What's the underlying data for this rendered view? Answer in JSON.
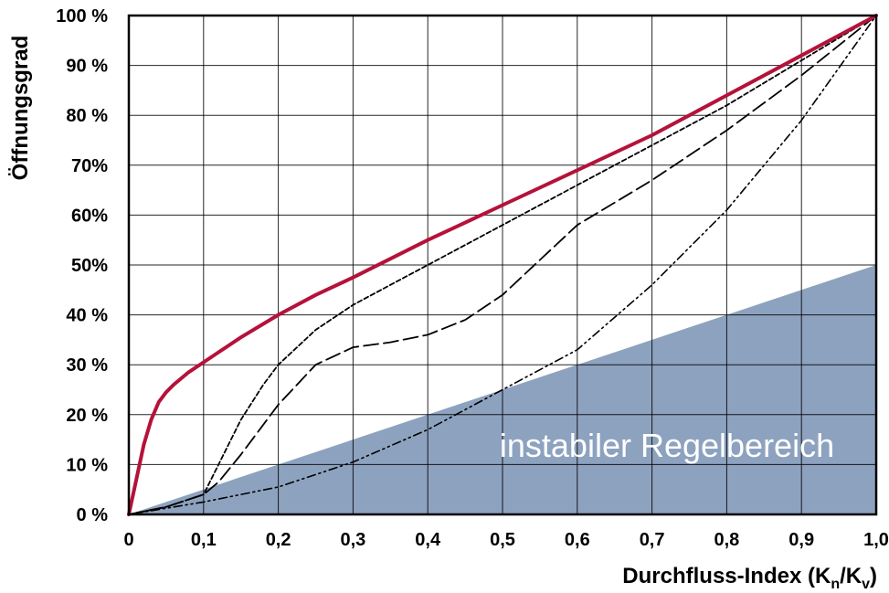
{
  "chart_data": {
    "type": "line",
    "xlabel": {
      "main": "Durchfluss-Index (K",
      "sub1": "n",
      "mid": "/K",
      "sub2": "v",
      "end": ")"
    },
    "ylabel": "Öffnungsgrad",
    "xlim": [
      0,
      1
    ],
    "ylim": [
      0,
      100
    ],
    "x_ticks": [
      {
        "value": 0.0,
        "label": "0"
      },
      {
        "value": 0.1,
        "label": "0,1"
      },
      {
        "value": 0.2,
        "label": "0,2"
      },
      {
        "value": 0.3,
        "label": "0,3"
      },
      {
        "value": 0.4,
        "label": "0,4"
      },
      {
        "value": 0.5,
        "label": "0,5"
      },
      {
        "value": 0.6,
        "label": "0,6"
      },
      {
        "value": 0.7,
        "label": "0,7"
      },
      {
        "value": 0.8,
        "label": "0,8"
      },
      {
        "value": 0.9,
        "label": "0,9"
      },
      {
        "value": 1.0,
        "label": "1,0"
      }
    ],
    "y_ticks": [
      {
        "value": 0,
        "label": "0 %"
      },
      {
        "value": 10,
        "label": "10 %"
      },
      {
        "value": 20,
        "label": "20 %"
      },
      {
        "value": 30,
        "label": "30 %"
      },
      {
        "value": 40,
        "label": "40 %"
      },
      {
        "value": 50,
        "label": "50%"
      },
      {
        "value": 60,
        "label": "60%"
      },
      {
        "value": 70,
        "label": "70%"
      },
      {
        "value": 80,
        "label": "80 %"
      },
      {
        "value": 90,
        "label": "90 %"
      },
      {
        "value": 100,
        "label": "100 %"
      }
    ],
    "grid": true,
    "region": {
      "label": "instabiler Regelbereich",
      "color": "#8da2bf",
      "x": [
        0,
        1,
        1
      ],
      "y": [
        0,
        50,
        0
      ]
    },
    "series": [
      {
        "style": "solid-red",
        "color": "#b5123a",
        "x": [
          0,
          0.01,
          0.02,
          0.03,
          0.04,
          0.05,
          0.06,
          0.08,
          0.1,
          0.12,
          0.15,
          0.2,
          0.25,
          0.3,
          0.4,
          0.5,
          0.6,
          0.7,
          0.8,
          0.9,
          1.0
        ],
        "y": [
          0,
          7,
          14,
          19,
          22.5,
          24.5,
          26,
          28.5,
          30.5,
          32.5,
          35.5,
          40,
          44,
          47.5,
          55,
          62,
          69,
          76,
          84,
          92,
          100
        ]
      },
      {
        "style": "short-dash",
        "color": "#000000",
        "x": [
          0,
          0.05,
          0.1,
          0.12,
          0.15,
          0.18,
          0.2,
          0.25,
          0.3,
          0.35,
          0.4,
          0.5,
          0.6,
          0.7,
          0.8,
          0.9,
          1.0
        ],
        "y": [
          0,
          1.5,
          4,
          10,
          19,
          26,
          30,
          37,
          42,
          46,
          50,
          58,
          66,
          74,
          82,
          91,
          100
        ]
      },
      {
        "style": "long-dash",
        "color": "#000000",
        "x": [
          0,
          0.05,
          0.1,
          0.12,
          0.15,
          0.2,
          0.25,
          0.3,
          0.35,
          0.4,
          0.45,
          0.5,
          0.55,
          0.6,
          0.7,
          0.8,
          0.9,
          1.0
        ],
        "y": [
          0,
          1.5,
          4,
          6.5,
          12,
          22,
          30,
          33.5,
          34.5,
          36,
          39,
          44,
          51,
          58,
          67,
          77,
          88,
          100
        ]
      },
      {
        "style": "dash-dot-dot",
        "color": "#000000",
        "x": [
          0,
          0.1,
          0.2,
          0.3,
          0.4,
          0.5,
          0.6,
          0.7,
          0.8,
          0.9,
          1.0
        ],
        "y": [
          0,
          2.5,
          5.5,
          10.5,
          17,
          25,
          33,
          46,
          61,
          79,
          100
        ]
      }
    ]
  }
}
